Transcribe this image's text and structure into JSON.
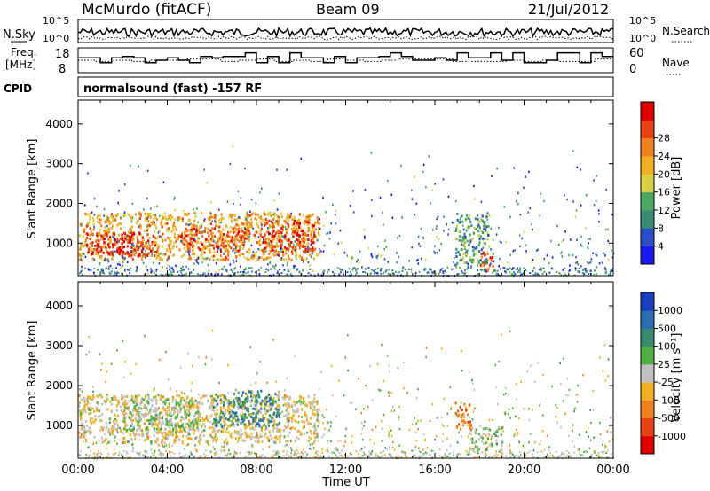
{
  "header": {
    "station": "McMurdo (fitACF)",
    "beam": "Beam 09",
    "date": "21/Jul/2012"
  },
  "summary": {
    "left_labels": {
      "nsky": "N.Sky",
      "freq_l1": "Freq.",
      "freq_l2": "[MHz]",
      "cpid": "CPID"
    },
    "right_labels": {
      "nsearch": "N.Search",
      "nave": "Nave"
    },
    "noise_ticks_left": [
      "10^5",
      "10^0"
    ],
    "noise_ticks_right": [
      "10^5",
      "10^0"
    ],
    "freq_ticks": [
      "18",
      "8"
    ],
    "nave_ticks": [
      "60",
      "0"
    ],
    "cpid_text": "normalsound (fast) -157 RF"
  },
  "axes": {
    "ylabel": "Slant Range [km]",
    "yticks": [
      "1000",
      "2000",
      "3000",
      "4000"
    ],
    "ytick_values": [
      1000,
      2000,
      3000,
      4000
    ],
    "ylim": [
      180,
      4600
    ],
    "xticks": [
      "00:00",
      "04:00",
      "08:00",
      "12:00",
      "16:00",
      "20:00",
      "00:00"
    ],
    "xlim_hours": [
      0,
      24
    ],
    "xlabel": "Time UT"
  },
  "colorbars": {
    "power": {
      "label": "Power [dB]",
      "ticks": [
        "4",
        "8",
        "12",
        "16",
        "20",
        "24",
        "28"
      ],
      "colors": [
        "#1a1af0",
        "#2a50c8",
        "#3a8a78",
        "#4aa860",
        "#d8d040",
        "#f0b020",
        "#f08020",
        "#e84010",
        "#e00000"
      ]
    },
    "velocity": {
      "label": "Velocity [m s⁻¹]",
      "ticks": [
        "1000",
        "500",
        "100",
        "25",
        "-25",
        "-100",
        "-500",
        "-1000"
      ],
      "colors": [
        "#1a40c0",
        "#2a70b0",
        "#3a8a70",
        "#50b040",
        "#c0c0c0",
        "#f0b020",
        "#f08020",
        "#e84010",
        "#e00000"
      ]
    }
  },
  "chart_data": [
    {
      "type": "heatmap",
      "title": "Power [dB]",
      "xlabel": "Time UT",
      "ylabel": "Slant Range [km]",
      "x_hours_range": [
        0,
        24
      ],
      "y_km_range": [
        180,
        4600
      ],
      "scatter_blocks": [
        {
          "t0": 0.0,
          "t1": 10.8,
          "r0": 600,
          "r1": 1800,
          "value_db": 20
        },
        {
          "t0": 0.3,
          "t1": 3.5,
          "r0": 700,
          "r1": 1300,
          "value_db": 28
        },
        {
          "t0": 4.5,
          "t1": 7.5,
          "r0": 800,
          "r1": 1400,
          "value_db": 24
        },
        {
          "t0": 8.2,
          "t1": 10.6,
          "r0": 800,
          "r1": 1600,
          "value_db": 26
        },
        {
          "t0": 16.9,
          "t1": 18.4,
          "r0": 500,
          "r1": 1800,
          "value_db": 12
        },
        {
          "t0": 18.0,
          "t1": 18.6,
          "r0": 300,
          "r1": 800,
          "value_db": 26
        }
      ]
    },
    {
      "type": "heatmap",
      "title": "Velocity [m s-1]",
      "xlabel": "Time UT",
      "ylabel": "Slant Range [km]",
      "x_hours_range": [
        0,
        24
      ],
      "y_km_range": [
        180,
        4600
      ],
      "scatter_blocks": [
        {
          "t0": 0.0,
          "t1": 10.8,
          "r0": 600,
          "r1": 1800,
          "value_ms": -100
        },
        {
          "t0": 2.0,
          "t1": 5.5,
          "r0": 900,
          "r1": 1700,
          "value_ms": 100
        },
        {
          "t0": 6.0,
          "t1": 9.0,
          "r0": 1000,
          "r1": 1900,
          "value_ms": 500
        },
        {
          "t0": 16.9,
          "t1": 17.6,
          "r0": 900,
          "r1": 1600,
          "value_ms": -500
        },
        {
          "t0": 17.5,
          "t1": 19.0,
          "r0": 400,
          "r1": 1000,
          "value_ms": 100
        }
      ]
    }
  ]
}
